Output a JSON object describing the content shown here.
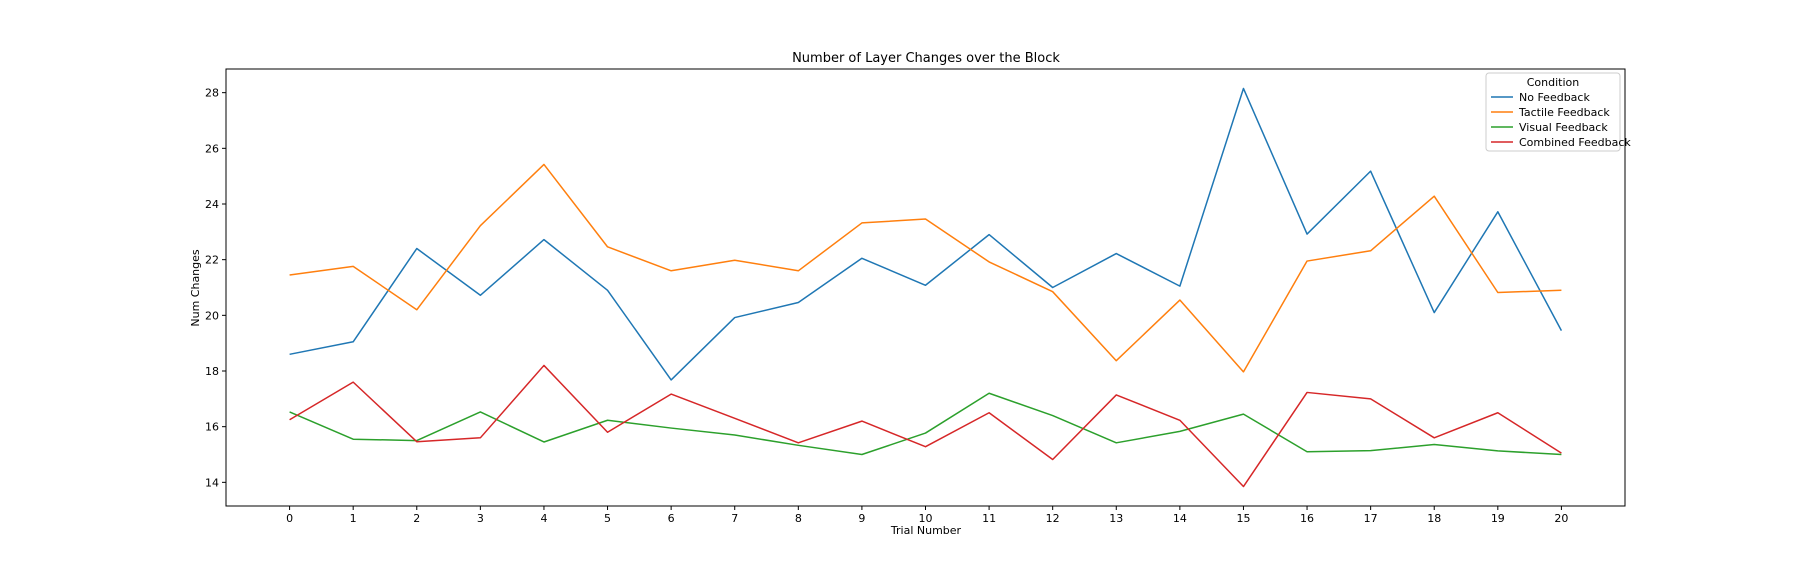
{
  "chart_data": {
    "type": "line",
    "title": "Number of Layer Changes over the Block",
    "xlabel": "Trial Number",
    "ylabel": "Num Changes",
    "x": [
      0,
      1,
      2,
      3,
      4,
      5,
      6,
      7,
      8,
      9,
      10,
      11,
      12,
      13,
      14,
      15,
      16,
      17,
      18,
      19,
      20
    ],
    "xlim": [
      -1,
      21
    ],
    "ylim": [
      13.15,
      28.85
    ],
    "yticks": [
      14,
      16,
      18,
      20,
      22,
      24,
      26,
      28
    ],
    "grid": false,
    "legend": {
      "title": "Condition",
      "placement": "top-right"
    },
    "series": [
      {
        "name": "No Feedback",
        "color": "#1f77b4",
        "values": [
          18.6,
          19.05,
          22.4,
          20.72,
          22.72,
          20.9,
          17.68,
          19.92,
          20.46,
          22.05,
          21.08,
          22.9,
          21.0,
          22.22,
          21.05,
          28.15,
          22.92,
          25.18,
          20.1,
          23.72,
          19.45
        ]
      },
      {
        "name": "Tactile Feedback",
        "color": "#ff7f0e",
        "values": [
          21.45,
          21.76,
          20.2,
          23.22,
          25.42,
          22.46,
          21.6,
          21.98,
          21.6,
          23.32,
          23.46,
          21.92,
          20.85,
          18.37,
          20.55,
          17.97,
          21.95,
          22.32,
          24.28,
          20.82,
          20.9
        ]
      },
      {
        "name": "Visual Feedback",
        "color": "#2ca02c",
        "values": [
          16.53,
          15.55,
          15.5,
          16.53,
          15.45,
          16.23,
          15.95,
          15.7,
          15.33,
          15.0,
          15.77,
          17.2,
          16.4,
          15.42,
          15.83,
          16.45,
          15.1,
          15.14,
          15.36,
          15.13,
          15.0
        ]
      },
      {
        "name": "Combined Feedback",
        "color": "#d62728",
        "values": [
          16.25,
          17.6,
          15.46,
          15.6,
          18.2,
          15.8,
          17.17,
          16.3,
          15.42,
          16.2,
          15.28,
          16.5,
          14.82,
          17.14,
          16.23,
          13.85,
          17.23,
          17.0,
          15.6,
          16.5,
          15.05
        ]
      }
    ]
  }
}
